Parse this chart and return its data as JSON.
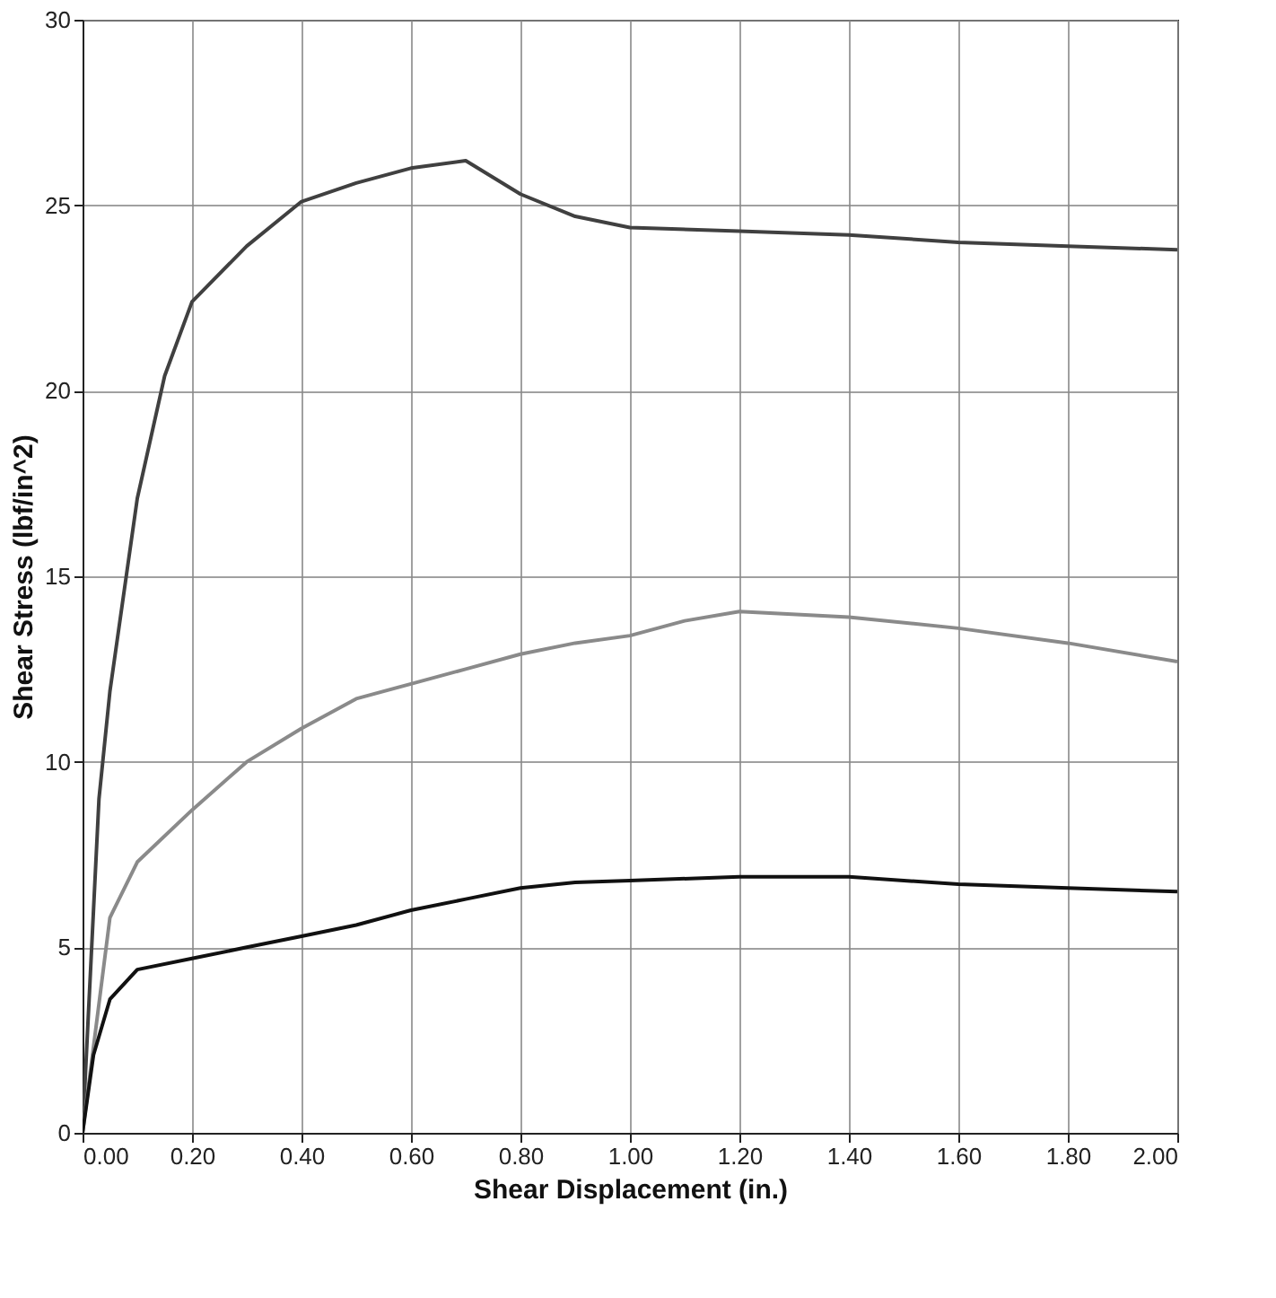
{
  "chart_data": {
    "type": "line",
    "xlabel": "Shear Displacement (in.)",
    "ylabel": "Shear Stress (lbf/in^2)",
    "xlim": [
      0,
      2
    ],
    "ylim": [
      0,
      30
    ],
    "xticks": [
      {
        "value": 0,
        "label": "0.00"
      },
      {
        "value": 0.2,
        "label": "0.20"
      },
      {
        "value": 0.4,
        "label": "0.40"
      },
      {
        "value": 0.6,
        "label": "0.60"
      },
      {
        "value": 0.8,
        "label": "0.80"
      },
      {
        "value": 1,
        "label": "1.00"
      },
      {
        "value": 1.2,
        "label": "1.20"
      },
      {
        "value": 1.4,
        "label": "1.40"
      },
      {
        "value": 1.6,
        "label": "1.60"
      },
      {
        "value": 1.8,
        "label": "1.80"
      },
      {
        "value": 2,
        "label": "2.00"
      }
    ],
    "yticks": [
      0,
      5,
      10,
      15,
      20,
      25,
      30
    ],
    "grid": true,
    "series": [
      {
        "color": "#404040",
        "x": [
          0,
          0.03,
          0.05,
          0.1,
          0.15,
          0.2,
          0.3,
          0.4,
          0.5,
          0.6,
          0.7,
          0.8,
          0.9,
          1.0,
          1.2,
          1.4,
          1.6,
          1.8,
          2.0
        ],
        "values": [
          0,
          9,
          11.9,
          17.1,
          20.4,
          22.4,
          23.9,
          25.1,
          25.6,
          26.0,
          26.2,
          25.3,
          24.7,
          24.4,
          24.3,
          24.2,
          24.0,
          23.9,
          23.8
        ]
      },
      {
        "color": "#8a8a8a",
        "x": [
          0,
          0.05,
          0.1,
          0.2,
          0.3,
          0.4,
          0.5,
          0.6,
          0.7,
          0.8,
          0.9,
          1.0,
          1.1,
          1.2,
          1.4,
          1.6,
          1.8,
          2.0
        ],
        "values": [
          0,
          5.8,
          7.3,
          8.7,
          10.0,
          10.9,
          11.7,
          12.1,
          12.5,
          12.9,
          13.2,
          13.4,
          13.8,
          14.05,
          13.9,
          13.6,
          13.2,
          12.7
        ]
      },
      {
        "color": "#111111",
        "x": [
          0,
          0.02,
          0.05,
          0.1,
          0.2,
          0.3,
          0.4,
          0.5,
          0.6,
          0.7,
          0.8,
          0.9,
          1.0,
          1.2,
          1.4,
          1.6,
          1.8,
          2.0
        ],
        "values": [
          0,
          2.1,
          3.6,
          4.4,
          4.7,
          5.0,
          5.3,
          5.6,
          6.0,
          6.3,
          6.6,
          6.75,
          6.8,
          6.9,
          6.9,
          6.7,
          6.6,
          6.5
        ]
      }
    ]
  }
}
